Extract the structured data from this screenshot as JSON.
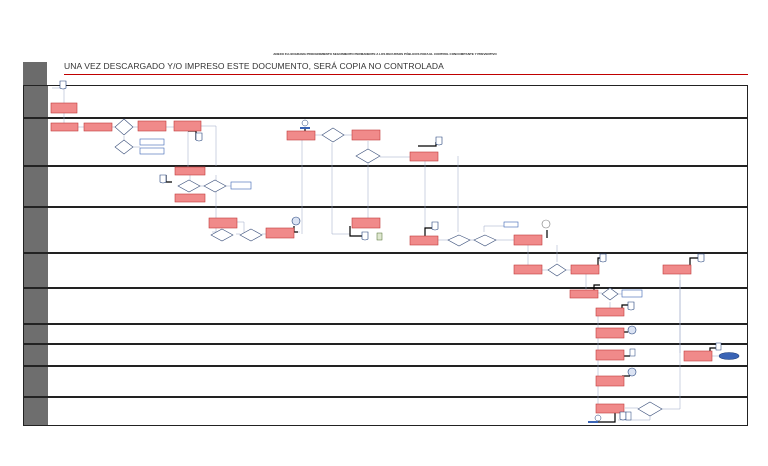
{
  "title": "ANEXO FLUJOGRAMA PROCEDIMIENTO SEGUIMIENTO PERMANENTE A LOS RECURSOS PÚBLICOS PARA EL CONTROL CONCOMITANTE Y PREVENTIVO",
  "disclaimer": "UNA VEZ DESCARGADO Y/O IMPRESO ESTE DOCUMENTO, SERÁ COPIA NO CONTROLADA",
  "header_label": "",
  "colors": {
    "activity_fill": "#f08a8a",
    "activity_stroke": "#c23b3b",
    "decision_stroke": "#3a4f7a",
    "terminator_fill": "#3a64b5",
    "rule": "#c00000",
    "lane_label_bg": "#6e6e6e"
  },
  "lanes": [
    {
      "label": ""
    },
    {
      "label": ""
    },
    {
      "label": ""
    },
    {
      "label": ""
    },
    {
      "label": ""
    },
    {
      "label": ""
    },
    {
      "label": ""
    },
    {
      "label": ""
    },
    {
      "label": ""
    },
    {
      "label": ""
    },
    {
      "label": ""
    }
  ]
}
